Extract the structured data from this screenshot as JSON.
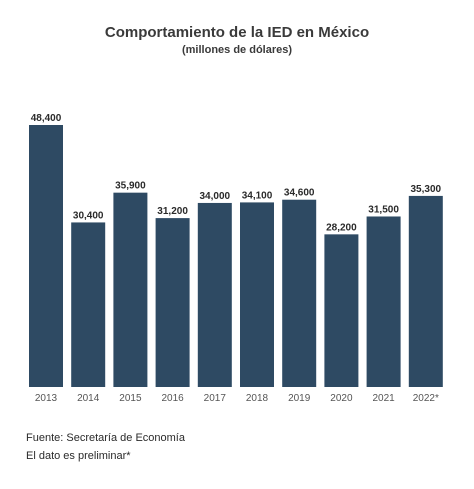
{
  "chart_data": {
    "type": "bar",
    "title": "Comportamiento de la IED en México",
    "subtitle": "(millones de dólares)",
    "categories": [
      "2013",
      "2014",
      "2015",
      "2016",
      "2017",
      "2018",
      "2019",
      "2020",
      "2021",
      "2022*"
    ],
    "values": [
      48400,
      30400,
      35900,
      31200,
      34000,
      34100,
      34600,
      28200,
      31500,
      35300
    ],
    "value_labels": [
      "48,400",
      "30,400",
      "35,900",
      "31,200",
      "34,000",
      "34,100",
      "34,600",
      "28,200",
      "31,500",
      "35,300"
    ],
    "ylim": [
      0,
      48400
    ],
    "grid": false,
    "legend": "none",
    "bar_color": "#2e4a63"
  },
  "footer": {
    "source": "Fuente: Secretaría de Economía",
    "note": "El dato es preliminar*"
  }
}
